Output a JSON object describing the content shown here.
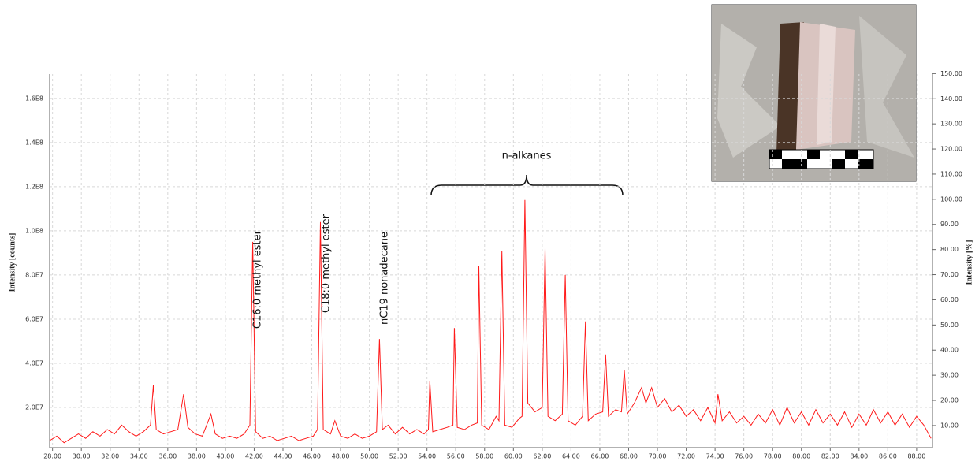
{
  "chart_data": {
    "type": "line",
    "y_label": "Intensity [counts]",
    "y2_label": "Intensity [%]",
    "annotations": [
      "C16:0 methyl ester",
      "C18:0 methyl ester",
      "nC19 nonadecane",
      "n-alkanes"
    ],
    "x": [
      27.8,
      28.3,
      28.8,
      29.3,
      29.8,
      30.3,
      30.8,
      31.3,
      31.8,
      32.3,
      32.8,
      33.3,
      33.8,
      34.3,
      34.8,
      35.0,
      35.2,
      35.7,
      36.2,
      36.7,
      37.1,
      37.4,
      37.9,
      38.4,
      39.0,
      39.3,
      39.8,
      40.3,
      40.8,
      41.3,
      41.7,
      41.9,
      42.1,
      42.6,
      43.1,
      43.6,
      44.1,
      44.6,
      45.1,
      45.6,
      46.1,
      46.4,
      46.6,
      46.8,
      47.3,
      47.6,
      48.0,
      48.5,
      49.0,
      49.5,
      50.0,
      50.5,
      50.7,
      50.9,
      51.3,
      51.8,
      52.3,
      52.8,
      53.3,
      53.8,
      54.1,
      54.2,
      54.4,
      54.9,
      55.4,
      55.8,
      55.9,
      56.1,
      56.6,
      57.1,
      57.5,
      57.6,
      57.8,
      58.3,
      58.8,
      59.0,
      59.2,
      59.4,
      59.9,
      60.4,
      60.6,
      60.8,
      61.0,
      61.5,
      62.0,
      62.2,
      62.4,
      62.9,
      63.4,
      63.6,
      63.8,
      64.3,
      64.8,
      65.0,
      65.2,
      65.7,
      66.2,
      66.4,
      66.6,
      67.1,
      67.5,
      67.7,
      67.9,
      68.4,
      68.9,
      69.2,
      69.6,
      70.0,
      70.5,
      71.0,
      71.5,
      72.0,
      72.5,
      73.0,
      73.5,
      74.0,
      74.2,
      74.5,
      75.0,
      75.5,
      76.0,
      76.5,
      77.0,
      77.5,
      78.0,
      78.5,
      79.0,
      79.5,
      80.0,
      80.5,
      81.0,
      81.5,
      82.0,
      82.5,
      83.0,
      83.5,
      84.0,
      84.5,
      85.0,
      85.5,
      86.0,
      86.5,
      87.0,
      87.5,
      88.0,
      88.5,
      89.0
    ],
    "series": [
      {
        "color": "#ff1a1a",
        "values": [
          5000000.0,
          7000000.0,
          4000000.0,
          6000000.0,
          8000000.0,
          6000000.0,
          9000000.0,
          7000000.0,
          10000000.0,
          8000000.0,
          12000000.0,
          9000000.0,
          7000000.0,
          9000000.0,
          12000000.0,
          30000000.0,
          10000000.0,
          8000000.0,
          9000000.0,
          10000000.0,
          26000000.0,
          11000000.0,
          8000000.0,
          7000000.0,
          17000000.0,
          8000000.0,
          6000000.0,
          7000000.0,
          6000000.0,
          8000000.0,
          12000000.0,
          95000000.0,
          9000000.0,
          6000000.0,
          7000000.0,
          5000000.0,
          6000000.0,
          7000000.0,
          5000000.0,
          6000000.0,
          7000000.0,
          10000000.0,
          104000000.0,
          10000000.0,
          8000000.0,
          14000000.0,
          7000000.0,
          6000000.0,
          8000000.0,
          6000000.0,
          7000000.0,
          9000000.0,
          51000000.0,
          10000000.0,
          12000000.0,
          8000000.0,
          11000000.0,
          8000000.0,
          10000000.0,
          8000000.0,
          10000000.0,
          32000000.0,
          9000000.0,
          10000000.0,
          11000000.0,
          12000000.0,
          56000000.0,
          11000000.0,
          10000000.0,
          12000000.0,
          13000000.0,
          84000000.0,
          12000000.0,
          10000000.0,
          16000000.0,
          14000000.0,
          91000000.0,
          12000000.0,
          11000000.0,
          15000000.0,
          16000000.0,
          114000000.0,
          22000000.0,
          18000000.0,
          20000000.0,
          92000000.0,
          16000000.0,
          14000000.0,
          17000000.0,
          80000000.0,
          14000000.0,
          12000000.0,
          16000000.0,
          59000000.0,
          14000000.0,
          17000000.0,
          18000000.0,
          44000000.0,
          16000000.0,
          19000000.0,
          18000000.0,
          37000000.0,
          17000000.0,
          22000000.0,
          29000000.0,
          22000000.0,
          29000000.0,
          20000000.0,
          24000000.0,
          18000000.0,
          21000000.0,
          16000000.0,
          19000000.0,
          14000000.0,
          20000000.0,
          13000000.0,
          26000000.0,
          14000000.0,
          18000000.0,
          13000000.0,
          16000000.0,
          12000000.0,
          17000000.0,
          13000000.0,
          19000000.0,
          12000000.0,
          20000000.0,
          13000000.0,
          18000000.0,
          12000000.0,
          19000000.0,
          13000000.0,
          17000000.0,
          12000000.0,
          18000000.0,
          11000000.0,
          17000000.0,
          12000000.0,
          19000000.0,
          13000000.0,
          18000000.0,
          12000000.0,
          17000000.0,
          11000000.0,
          16000000.0,
          12000000.0,
          6000000.0
        ]
      }
    ],
    "xlim": [
      27.8,
      89.1
    ],
    "ylim": [
      1800000.0,
      171000000.0
    ],
    "y2lim": [
      1.2,
      149.8
    ],
    "xticks": [
      {
        "value": 28,
        "label": "28.00"
      },
      {
        "value": 30,
        "label": "30.00"
      },
      {
        "value": 32,
        "label": "32.00"
      },
      {
        "value": 34,
        "label": "34.00"
      },
      {
        "value": 36,
        "label": "36.00"
      },
      {
        "value": 38,
        "label": "38.00"
      },
      {
        "value": 40,
        "label": "40.00"
      },
      {
        "value": 42,
        "label": "42.00"
      },
      {
        "value": 44,
        "label": "44.00"
      },
      {
        "value": 46,
        "label": "46.00"
      },
      {
        "value": 48,
        "label": "48.00"
      },
      {
        "value": 50,
        "label": "50.00"
      },
      {
        "value": 52,
        "label": "52.00"
      },
      {
        "value": 54,
        "label": "54.00"
      },
      {
        "value": 56,
        "label": "56.00"
      },
      {
        "value": 58,
        "label": "58.00"
      },
      {
        "value": 60,
        "label": "60.00"
      },
      {
        "value": 62,
        "label": "62.00"
      },
      {
        "value": 64,
        "label": "64.00"
      },
      {
        "value": 66,
        "label": "66.00"
      },
      {
        "value": 68,
        "label": "68.00"
      },
      {
        "value": 70,
        "label": "70.00"
      },
      {
        "value": 72,
        "label": "72.00"
      },
      {
        "value": 74,
        "label": "74.00"
      },
      {
        "value": 76,
        "label": "76.00"
      },
      {
        "value": 78,
        "label": "78.00"
      },
      {
        "value": 80,
        "label": "80.00"
      },
      {
        "value": 82,
        "label": "82.00"
      },
      {
        "value": 84,
        "label": "84.00"
      },
      {
        "value": 86,
        "label": "86.00"
      },
      {
        "value": 88,
        "label": "88.00"
      }
    ],
    "yticks": [
      {
        "value": 20000000,
        "label": "2.0E7"
      },
      {
        "value": 40000000,
        "label": "4.0E7"
      },
      {
        "value": 60000000,
        "label": "6.0E7"
      },
      {
        "value": 80000000,
        "label": "8.0E7"
      },
      {
        "value": 100000000,
        "label": "1.0E8"
      },
      {
        "value": 120000000,
        "label": "1.2E8"
      },
      {
        "value": 140000000,
        "label": "1.4E8"
      },
      {
        "value": 160000000,
        "label": "1.6E8"
      }
    ],
    "y2ticks": [
      {
        "value": 10,
        "label": "10.00"
      },
      {
        "value": 20,
        "label": "20.00"
      },
      {
        "value": 30,
        "label": "30.00"
      },
      {
        "value": 40,
        "label": "40.00"
      },
      {
        "value": 50,
        "label": "50.00"
      },
      {
        "value": 60,
        "label": "60.00"
      },
      {
        "value": 70,
        "label": "70.00"
      },
      {
        "value": 80,
        "label": "80.00"
      },
      {
        "value": 90,
        "label": "90.00"
      },
      {
        "value": 100,
        "label": "100.00"
      },
      {
        "value": 110,
        "label": "110.00"
      },
      {
        "value": 120,
        "label": "120.00"
      },
      {
        "value": 130,
        "label": "130.00"
      },
      {
        "value": 140,
        "label": "140.00"
      },
      {
        "value": 150,
        "label": "150.00"
      }
    ],
    "grid": true
  }
}
